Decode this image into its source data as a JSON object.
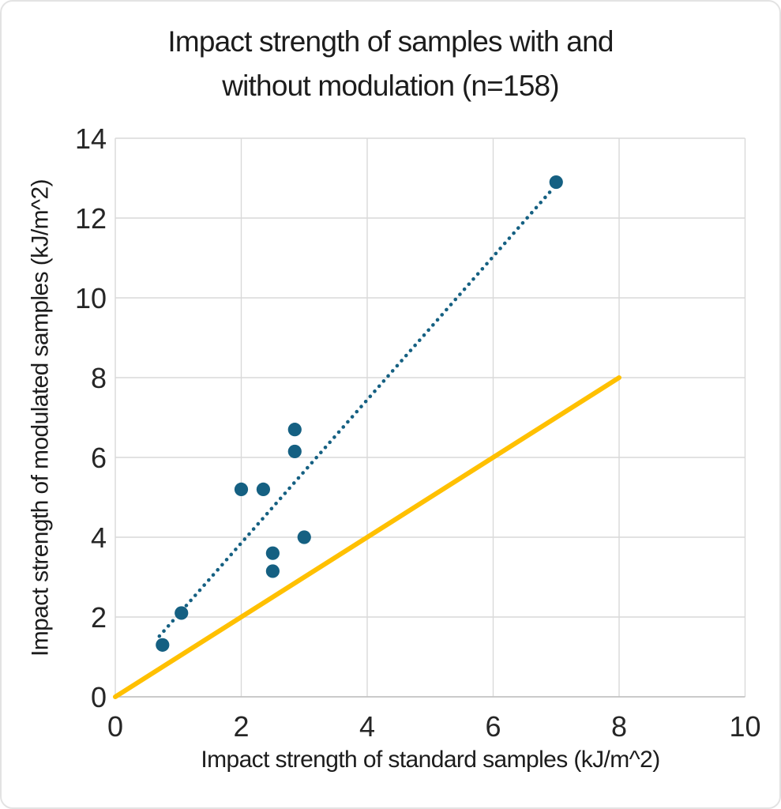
{
  "chart": {
    "title_line1": "Impact strength of samples with and",
    "title_line2": "without modulation (n=158)",
    "xlabel": "Impact strength of standard samples (kJ/m^2)",
    "ylabel": "Impact strength of modulated samples (kJ/m^2)"
  },
  "chart_data": {
    "type": "scatter",
    "title": "Impact strength of samples with and without modulation (n=158)",
    "xlabel": "Impact strength of standard samples (kJ/m^2)",
    "ylabel": "Impact strength of modulated samples (kJ/m^2)",
    "xlim": [
      0,
      10
    ],
    "ylim": [
      0,
      14
    ],
    "xticks": [
      0,
      2,
      4,
      6,
      8,
      10
    ],
    "yticks": [
      0,
      2,
      4,
      6,
      8,
      10,
      12,
      14
    ],
    "grid": true,
    "legend": false,
    "series": [
      {
        "name": "Modulated vs standard samples",
        "type": "scatter",
        "marker": "circle",
        "color": "#156082",
        "points": [
          [
            0.75,
            1.3
          ],
          [
            1.05,
            2.1
          ],
          [
            2.0,
            5.2
          ],
          [
            2.35,
            5.2
          ],
          [
            2.5,
            3.15
          ],
          [
            2.5,
            3.6
          ],
          [
            2.85,
            6.15
          ],
          [
            2.85,
            6.7
          ],
          [
            3.0,
            4.0
          ],
          [
            7.0,
            12.9
          ]
        ]
      },
      {
        "name": "Linear trendline",
        "type": "line",
        "style": "dotted",
        "color": "#156082",
        "from": [
          0.7,
          1.52
        ],
        "to": [
          6.95,
          12.74
        ]
      },
      {
        "name": "Identity line y = x",
        "type": "line",
        "style": "solid",
        "color": "#FFC000",
        "from": [
          0,
          0
        ],
        "to": [
          8,
          8
        ]
      }
    ],
    "colors": {
      "points": "#156082",
      "trendline": "#156082",
      "identity_line": "#FFC000",
      "gridline": "#D9D9D9",
      "axis_line": "#BFBFBF",
      "text": "#262626"
    }
  }
}
